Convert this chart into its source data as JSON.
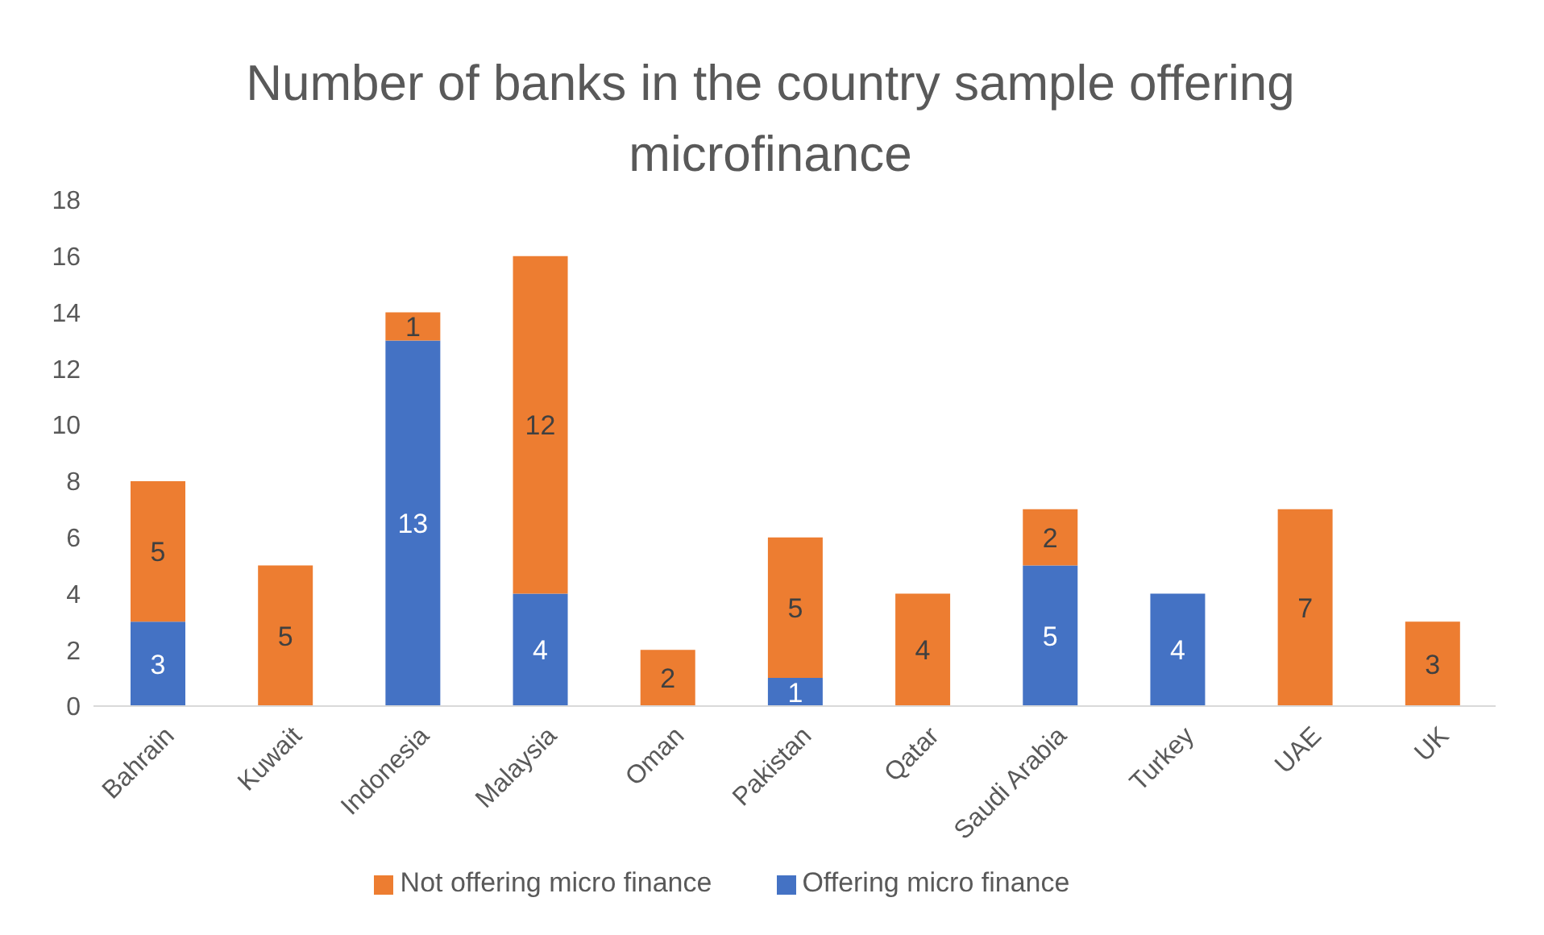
{
  "chart_data": {
    "type": "bar",
    "title": "Number of banks in the country sample offering microfinance",
    "categories": [
      "Bahrain",
      "Kuwait",
      "Indonesia",
      "Malaysia",
      "Oman",
      "Pakistan",
      "Qatar",
      "Saudi Arabia",
      "Turkey",
      "UAE",
      "UK"
    ],
    "series": [
      {
        "name": "Offering micro finance",
        "color": "#4472c4",
        "values": [
          3,
          null,
          13,
          4,
          null,
          1,
          null,
          5,
          4,
          null,
          null
        ]
      },
      {
        "name": "Not offering micro finance",
        "color": "#ed7d31",
        "values": [
          5,
          5,
          1,
          12,
          2,
          5,
          4,
          2,
          null,
          7,
          3
        ]
      }
    ],
    "stacked": true,
    "data_labels": true,
    "ylim": [
      0,
      18
    ],
    "yticks": [
      0,
      2,
      4,
      6,
      8,
      10,
      12,
      14,
      16,
      18
    ],
    "grid": false,
    "legend": "bottom"
  }
}
